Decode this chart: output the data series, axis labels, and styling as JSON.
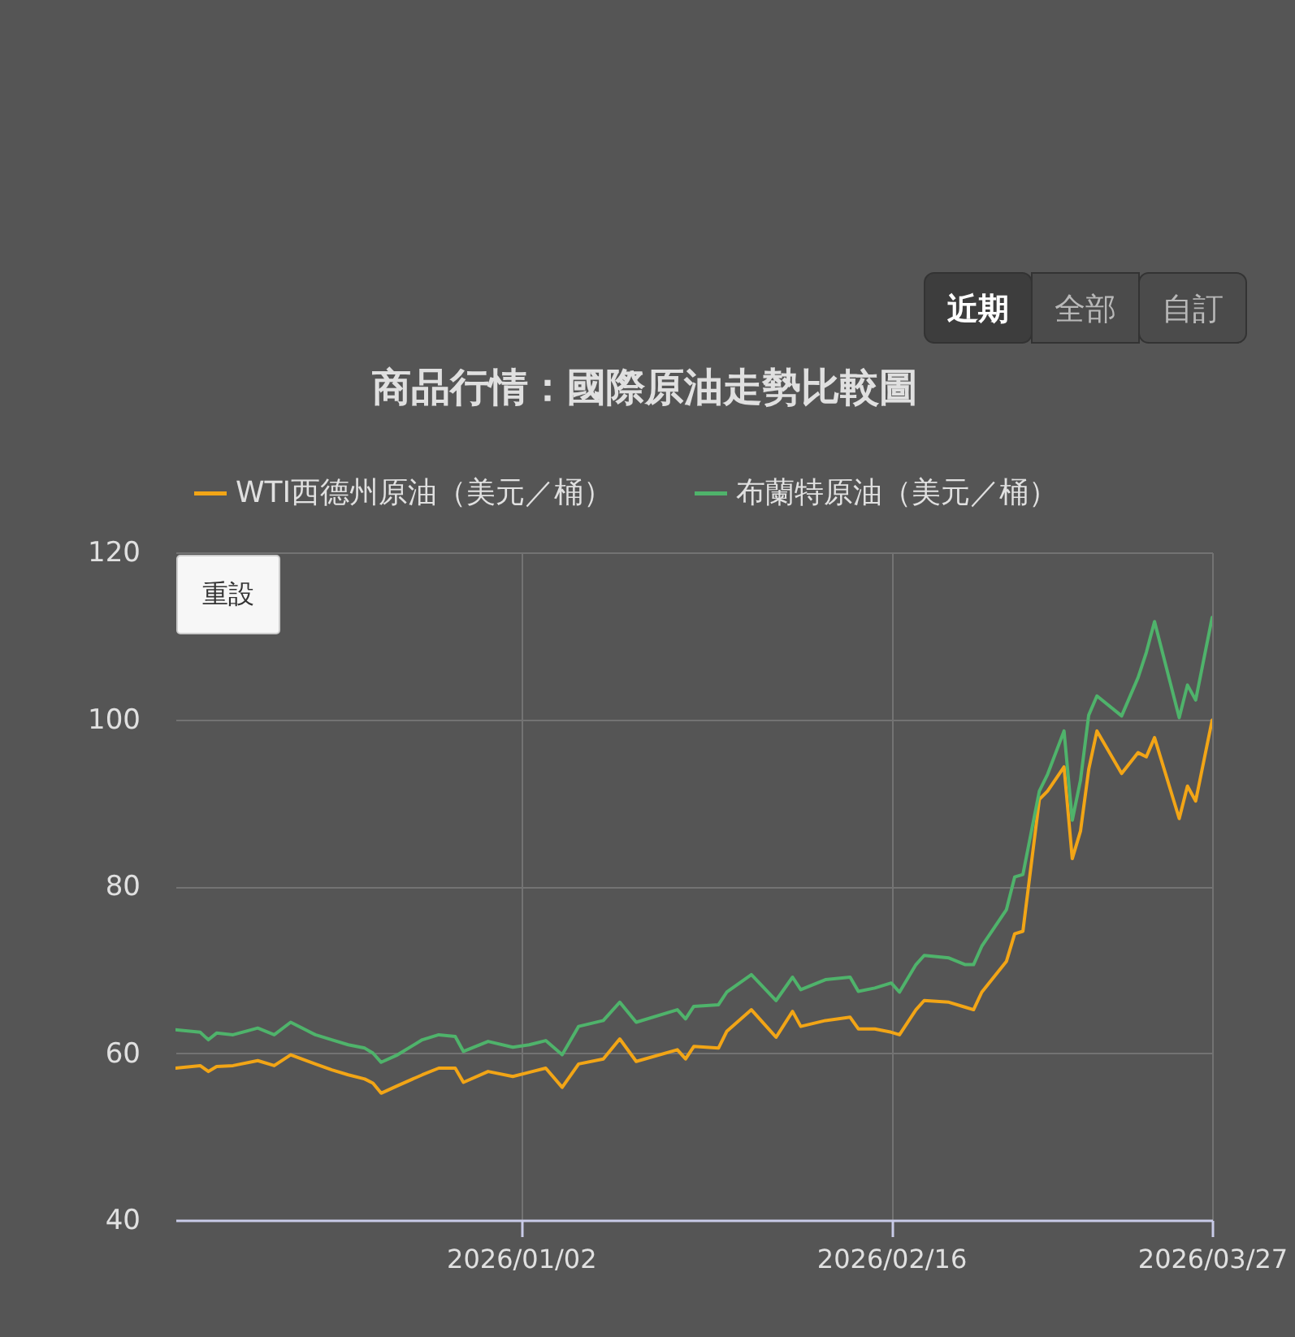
{
  "chart_data": {
    "type": "line",
    "title": "商品行情：國際原油走勢比較圖",
    "annotations": [
      "近期",
      "全部",
      "自訂",
      "重設"
    ],
    "x": [
      "2025-11-21",
      "2025-11-24",
      "2025-11-25",
      "2025-11-26",
      "2025-11-28",
      "2025-12-01",
      "2025-12-03",
      "2025-12-05",
      "2025-12-08",
      "2025-12-10",
      "2025-12-12",
      "2025-12-14",
      "2025-12-15",
      "2025-12-16",
      "2025-12-18",
      "2025-12-21",
      "2025-12-23",
      "2025-12-25",
      "2025-12-26",
      "2025-12-29",
      "2026-01-01",
      "2026-01-03",
      "2026-01-05",
      "2026-01-07",
      "2026-01-09",
      "2026-01-12",
      "2026-01-14",
      "2026-01-16",
      "2026-01-21",
      "2026-01-22",
      "2026-01-23",
      "2026-01-26",
      "2026-01-27",
      "2026-01-30",
      "2026-02-02",
      "2026-02-04",
      "2026-02-05",
      "2026-02-08",
      "2026-02-11",
      "2026-02-12",
      "2026-02-14",
      "2026-02-16",
      "2026-02-17",
      "2026-02-19",
      "2026-02-20",
      "2026-02-23",
      "2026-02-25",
      "2026-02-26",
      "2026-02-27",
      "2026-03-02",
      "2026-03-03",
      "2026-03-04",
      "2026-03-06",
      "2026-03-07",
      "2026-03-09",
      "2026-03-10",
      "2026-03-11",
      "2026-03-12",
      "2026-03-13",
      "2026-03-16",
      "2026-03-18",
      "2026-03-19",
      "2026-03-20",
      "2026-03-23",
      "2026-03-24",
      "2026-03-25",
      "2026-03-27"
    ],
    "series": [
      {
        "name": "WTI西德州原油（美元／桶）",
        "color": "#f2a516",
        "values": [
          58.2,
          58.5,
          57.8,
          58.4,
          58.5,
          59.1,
          58.5,
          59.8,
          58.7,
          58.0,
          57.4,
          56.9,
          56.4,
          55.2,
          56.1,
          57.4,
          58.2,
          58.2,
          56.5,
          57.8,
          57.2,
          57.7,
          58.2,
          55.9,
          58.7,
          59.3,
          61.7,
          59.0,
          60.4,
          59.3,
          60.8,
          60.6,
          62.6,
          65.2,
          61.9,
          65.0,
          63.2,
          63.9,
          64.3,
          62.9,
          62.9,
          62.5,
          62.2,
          65.2,
          66.3,
          66.1,
          65.5,
          65.2,
          67.3,
          71.0,
          74.3,
          74.6,
          90.4,
          91.4,
          94.3,
          83.3,
          86.6,
          94.0,
          98.6,
          93.5,
          96.0,
          95.5,
          97.8,
          88.1,
          92.0,
          90.2,
          99.9
        ]
      },
      {
        "name": "布蘭特原油（美元／桶）",
        "color": "#4fb36b",
        "values": [
          62.8,
          62.5,
          61.6,
          62.4,
          62.2,
          63.0,
          62.2,
          63.7,
          62.2,
          61.6,
          61.0,
          60.6,
          60.0,
          58.9,
          59.8,
          61.6,
          62.2,
          62.0,
          60.2,
          61.4,
          60.7,
          61.0,
          61.5,
          59.8,
          63.2,
          63.9,
          66.1,
          63.7,
          65.2,
          64.1,
          65.6,
          65.8,
          67.3,
          69.4,
          66.3,
          69.1,
          67.6,
          68.8,
          69.1,
          67.4,
          67.8,
          68.4,
          67.3,
          70.6,
          71.7,
          71.4,
          70.6,
          70.6,
          72.8,
          77.2,
          81.1,
          81.4,
          91.4,
          93.4,
          98.6,
          87.9,
          92.7,
          100.5,
          102.8,
          100.4,
          105.0,
          108.0,
          111.7,
          100.2,
          104.1,
          102.3,
          112.2
        ]
      }
    ],
    "xlim": [
      "2025-11-21",
      "2026-03-27"
    ],
    "xticks": [
      {
        "value": "2026-01-02",
        "label": "2026/01/02"
      },
      {
        "value": "2026-02-16",
        "label": "2026/02/16"
      },
      {
        "value": "2026-03-27",
        "label": "2026/03/27"
      }
    ],
    "ylim": [
      40,
      120
    ],
    "yticks": [
      40,
      60,
      80,
      100,
      120
    ],
    "grid": true,
    "legend": "top left",
    "line_style": "solid"
  }
}
